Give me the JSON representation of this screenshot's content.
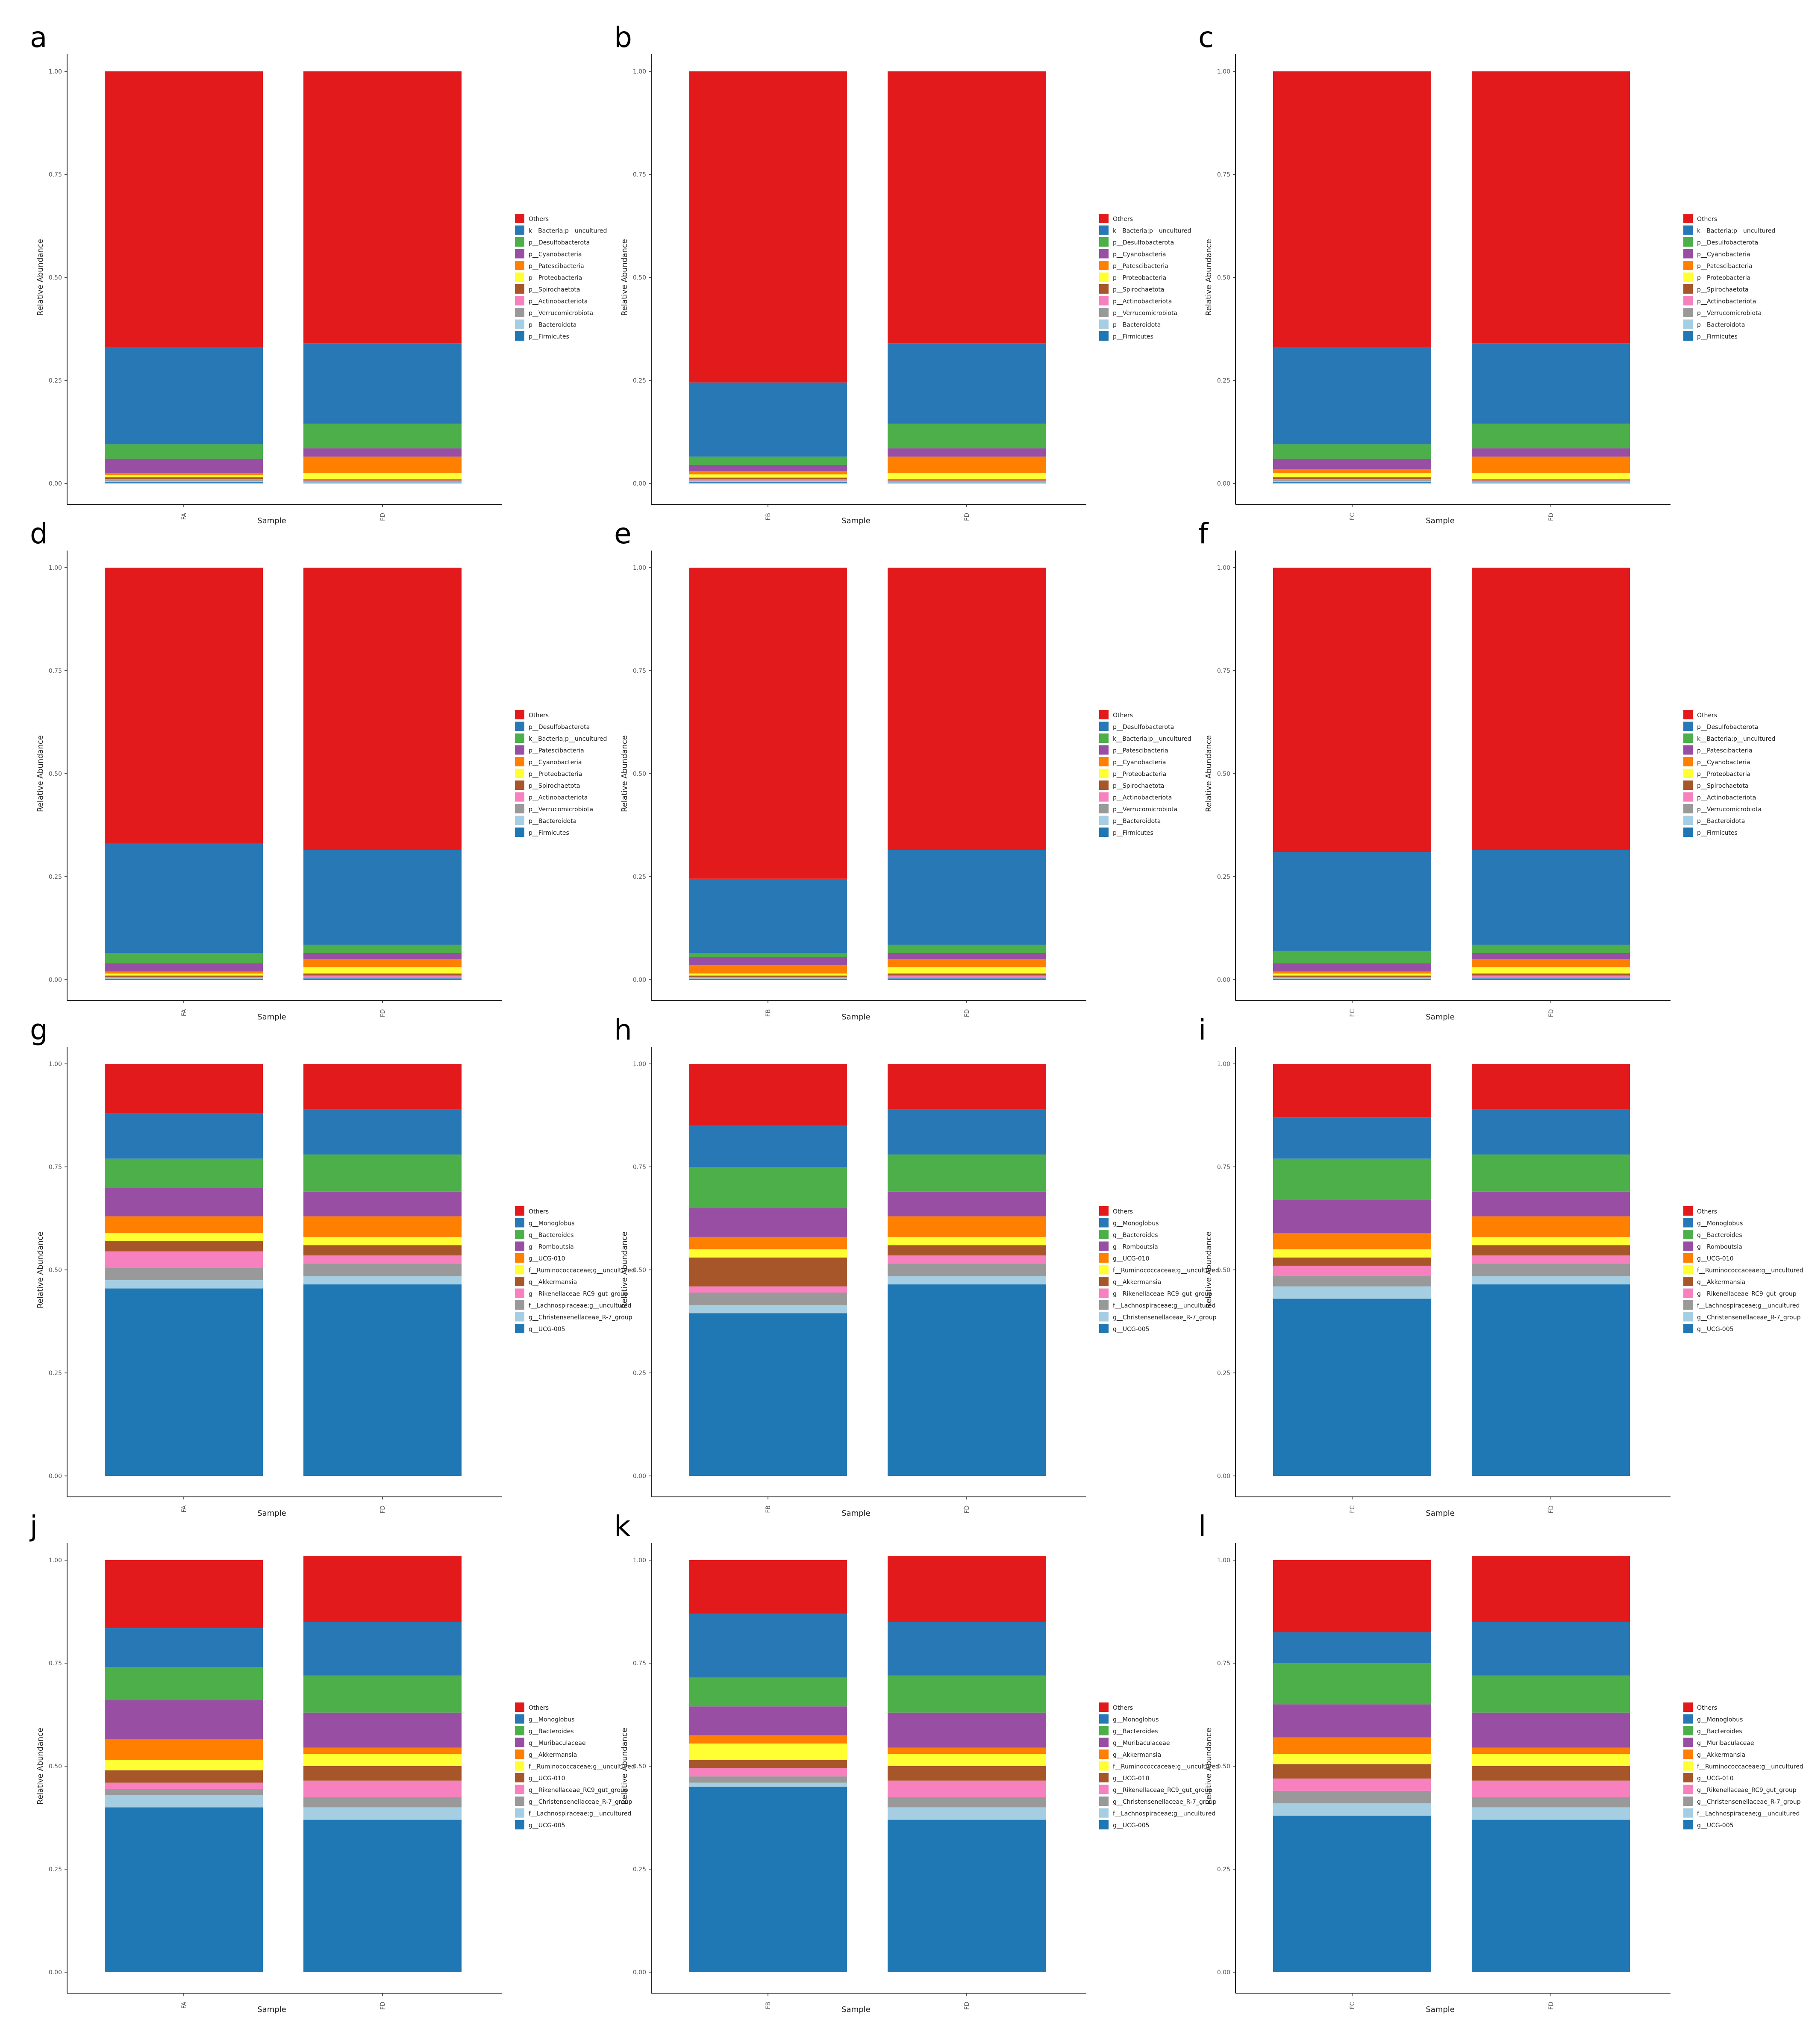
{
  "colors": {
    "Others": "#e31a1c",
    "c2": "#2878b5",
    "c3": "#4daf4a",
    "c4": "#984ea3",
    "c5": "#ff7f00",
    "c6": "#ffff33",
    "c7": "#a65628",
    "c8": "#f781bf",
    "c9": "#999999",
    "c10": "#a6cee3",
    "c11": "#1f78b4"
  },
  "common": {
    "xlabel": "Sample",
    "ylabel": "Relative Abundance",
    "yticks": [
      "0.00",
      "0.25",
      "0.50",
      "0.75",
      "1.00"
    ]
  },
  "legends": {
    "phylum1": [
      "Others",
      "k__Bacteria;p__uncultured",
      "p__Desulfobacterota",
      "p__Cyanobacteria",
      "p__Patescibacteria",
      "p__Proteobacteria",
      "p__Spirochaetota",
      "p__Actinobacteriota",
      "p__Verrucomicrobiota",
      "p__Bacteroidota",
      "p__Firmicutes"
    ],
    "phylum2": [
      "Others",
      "p__Desulfobacterota",
      "k__Bacteria;p__uncultured",
      "p__Patescibacteria",
      "p__Cyanobacteria",
      "p__Proteobacteria",
      "p__Spirochaetota",
      "p__Actinobacteriota",
      "p__Verrucomicrobiota",
      "p__Bacteroidota",
      "p__Firmicutes"
    ],
    "genus1": [
      "Others",
      "g__Monoglobus",
      "g__Bacteroides",
      "g__Romboutsia",
      "g__UCG-010",
      "f__Ruminococcaceae;g__uncultured",
      "g__Akkermansia",
      "g__Rikenellaceae_RC9_gut_group",
      "f__Lachnospiraceae;g__uncultured",
      "g__Christensenellaceae_R-7_group",
      "g__UCG-005"
    ],
    "genus2": [
      "Others",
      "g__Monoglobus",
      "g__Bacteroides",
      "g__Muribaculaceae",
      "g__Akkermansia",
      "f__Ruminococcaceae;g__uncultured",
      "g__UCG-010",
      "g__Rikenellaceae_RC9_gut_group",
      "g__Christensenellaceae_R-7_group",
      "f__Lachnospiraceae;g__uncultured",
      "g__UCG-005"
    ]
  },
  "chart_data": [
    {
      "panel": "a",
      "type": "bar",
      "stacked": true,
      "legend": "phylum1",
      "xlabel": "Sample",
      "ylabel": "Relative Abundance",
      "ylim": [
        0,
        1
      ],
      "categories": [
        "FA",
        "FD"
      ],
      "stacks": [
        [
          0.67,
          0.235,
          0.035,
          0.035,
          0.005,
          0.005,
          0.004,
          0.003,
          0.003,
          0.002,
          0.003
        ],
        [
          0.66,
          0.195,
          0.06,
          0.02,
          0.04,
          0.015,
          0.003,
          0.002,
          0.002,
          0.001,
          0.002
        ]
      ]
    },
    {
      "panel": "b",
      "type": "bar",
      "stacked": true,
      "legend": "phylum1",
      "xlabel": "Sample",
      "ylabel": "Relative Abundance",
      "ylim": [
        0,
        1
      ],
      "categories": [
        "FB",
        "FD"
      ],
      "stacks": [
        [
          0.755,
          0.18,
          0.02,
          0.015,
          0.008,
          0.008,
          0.004,
          0.003,
          0.002,
          0.002,
          0.003
        ],
        [
          0.66,
          0.195,
          0.06,
          0.02,
          0.04,
          0.015,
          0.003,
          0.002,
          0.002,
          0.001,
          0.002
        ]
      ]
    },
    {
      "panel": "c",
      "type": "bar",
      "stacked": true,
      "legend": "phylum1",
      "xlabel": "Sample",
      "ylabel": "Relative Abundance",
      "ylim": [
        0,
        1
      ],
      "categories": [
        "FC",
        "FD"
      ],
      "stacks": [
        [
          0.67,
          0.235,
          0.035,
          0.025,
          0.01,
          0.01,
          0.004,
          0.003,
          0.003,
          0.002,
          0.003
        ],
        [
          0.66,
          0.195,
          0.06,
          0.02,
          0.04,
          0.015,
          0.003,
          0.002,
          0.002,
          0.001,
          0.002
        ]
      ]
    },
    {
      "panel": "d",
      "type": "bar",
      "stacked": true,
      "legend": "phylum2",
      "xlabel": "Sample",
      "ylabel": "Relative Abundance",
      "ylim": [
        0,
        1
      ],
      "categories": [
        "FA",
        "FD"
      ],
      "stacks": [
        [
          0.67,
          0.265,
          0.025,
          0.02,
          0.005,
          0.005,
          0.003,
          0.002,
          0.002,
          0.001,
          0.002
        ],
        [
          0.685,
          0.23,
          0.02,
          0.015,
          0.02,
          0.015,
          0.005,
          0.003,
          0.002,
          0.002,
          0.003
        ]
      ]
    },
    {
      "panel": "e",
      "type": "bar",
      "stacked": true,
      "legend": "phylum2",
      "xlabel": "Sample",
      "ylabel": "Relative Abundance",
      "ylim": [
        0,
        1
      ],
      "categories": [
        "FB",
        "FD"
      ],
      "stacks": [
        [
          0.755,
          0.18,
          0.01,
          0.02,
          0.02,
          0.005,
          0.003,
          0.002,
          0.002,
          0.001,
          0.002
        ],
        [
          0.685,
          0.23,
          0.02,
          0.015,
          0.02,
          0.015,
          0.005,
          0.003,
          0.002,
          0.002,
          0.003
        ]
      ]
    },
    {
      "panel": "f",
      "type": "bar",
      "stacked": true,
      "legend": "phylum2",
      "xlabel": "Sample",
      "ylabel": "Relative Abundance",
      "ylim": [
        0,
        1
      ],
      "categories": [
        "FC",
        "FD"
      ],
      "stacks": [
        [
          0.69,
          0.24,
          0.03,
          0.02,
          0.005,
          0.005,
          0.003,
          0.002,
          0.002,
          0.001,
          0.002
        ],
        [
          0.685,
          0.23,
          0.02,
          0.015,
          0.02,
          0.015,
          0.005,
          0.003,
          0.002,
          0.002,
          0.003
        ]
      ]
    },
    {
      "panel": "g",
      "type": "bar",
      "stacked": true,
      "legend": "genus1",
      "xlabel": "Sample",
      "ylabel": "Relative Abundance",
      "ylim": [
        0,
        1
      ],
      "categories": [
        "FA",
        "FD"
      ],
      "stacks": [
        [
          0.12,
          0.11,
          0.07,
          0.07,
          0.04,
          0.02,
          0.025,
          0.04,
          0.03,
          0.02,
          0.455
        ],
        [
          0.11,
          0.11,
          0.09,
          0.06,
          0.05,
          0.02,
          0.025,
          0.02,
          0.03,
          0.02,
          0.465
        ]
      ]
    },
    {
      "panel": "h",
      "type": "bar",
      "stacked": true,
      "legend": "genus1",
      "xlabel": "Sample",
      "ylabel": "Relative Abundance",
      "ylim": [
        0,
        1
      ],
      "categories": [
        "FB",
        "FD"
      ],
      "stacks": [
        [
          0.15,
          0.1,
          0.1,
          0.07,
          0.03,
          0.02,
          0.07,
          0.015,
          0.03,
          0.02,
          0.395
        ],
        [
          0.11,
          0.11,
          0.09,
          0.06,
          0.05,
          0.02,
          0.025,
          0.02,
          0.03,
          0.02,
          0.465
        ]
      ]
    },
    {
      "panel": "i",
      "type": "bar",
      "stacked": true,
      "legend": "genus1",
      "xlabel": "Sample",
      "ylabel": "Relative Abundance",
      "ylim": [
        0,
        1
      ],
      "categories": [
        "FC",
        "FD"
      ],
      "stacks": [
        [
          0.13,
          0.1,
          0.1,
          0.08,
          0.04,
          0.02,
          0.02,
          0.025,
          0.025,
          0.03,
          0.43
        ],
        [
          0.11,
          0.11,
          0.09,
          0.06,
          0.05,
          0.02,
          0.025,
          0.02,
          0.03,
          0.02,
          0.465
        ]
      ]
    },
    {
      "panel": "j",
      "type": "bar",
      "stacked": true,
      "legend": "genus2",
      "xlabel": "Sample",
      "ylabel": "Relative Abundance",
      "ylim": [
        0,
        1
      ],
      "categories": [
        "FA",
        "FD"
      ],
      "stacks": [
        [
          0.165,
          0.095,
          0.08,
          0.095,
          0.05,
          0.025,
          0.03,
          0.015,
          0.015,
          0.03,
          0.4
        ],
        [
          0.16,
          0.13,
          0.09,
          0.085,
          0.015,
          0.03,
          0.035,
          0.04,
          0.025,
          0.03,
          0.37
        ]
      ]
    },
    {
      "panel": "k",
      "type": "bar",
      "stacked": true,
      "legend": "genus2",
      "xlabel": "Sample",
      "ylabel": "Relative Abundance",
      "ylim": [
        0,
        1
      ],
      "categories": [
        "FB",
        "FD"
      ],
      "stacks": [
        [
          0.13,
          0.155,
          0.07,
          0.07,
          0.02,
          0.04,
          0.02,
          0.02,
          0.015,
          0.01,
          0.45
        ],
        [
          0.16,
          0.13,
          0.09,
          0.085,
          0.015,
          0.03,
          0.035,
          0.04,
          0.025,
          0.03,
          0.37
        ]
      ]
    },
    {
      "panel": "l",
      "type": "bar",
      "stacked": true,
      "legend": "genus2",
      "xlabel": "Sample",
      "ylabel": "Relative Abundance",
      "ylim": [
        0,
        1
      ],
      "categories": [
        "FC",
        "FD"
      ],
      "stacks": [
        [
          0.175,
          0.075,
          0.1,
          0.08,
          0.04,
          0.025,
          0.035,
          0.03,
          0.03,
          0.03,
          0.38
        ],
        [
          0.16,
          0.13,
          0.09,
          0.085,
          0.015,
          0.03,
          0.035,
          0.04,
          0.025,
          0.03,
          0.37
        ]
      ]
    }
  ]
}
